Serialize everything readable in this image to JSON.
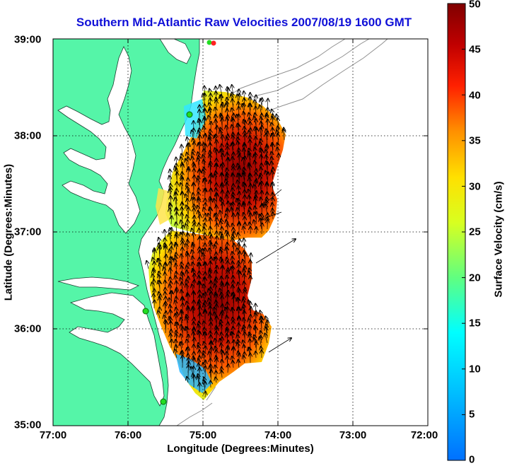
{
  "title": "Southern Mid-Atlantic Raw Velocities 2007/08/19 1600 GMT",
  "x_axis": {
    "label": "Longitude (Degrees:Minutes)",
    "ticks": [
      "77:00",
      "76:00",
      "75:00",
      "74:00",
      "73:00",
      "72:00"
    ]
  },
  "y_axis": {
    "label": "Latitude (Degrees:Minutes)",
    "ticks": [
      "39:00",
      "38:00",
      "37:00",
      "36:00",
      "35:00"
    ]
  },
  "colorbar": {
    "label": "Surface Velocity (cm/s)",
    "ticks": [
      "50",
      "45",
      "40",
      "35",
      "30",
      "25",
      "20",
      "15",
      "10",
      "5",
      "0"
    ],
    "range": [
      0,
      50
    ],
    "colormap": "jet"
  },
  "map": {
    "projection": "lon-lat",
    "lon_range": [
      -77.0,
      -72.0
    ],
    "lat_range": [
      35.0,
      39.0
    ],
    "grid": "dotted",
    "land_color": "#55f5a8",
    "sea_color": "#ffffff",
    "vector_color": "#000000",
    "bathymetry_color": "#909090",
    "station_color": "#22dd22",
    "station_marker_color_north": "#ff2222"
  }
}
